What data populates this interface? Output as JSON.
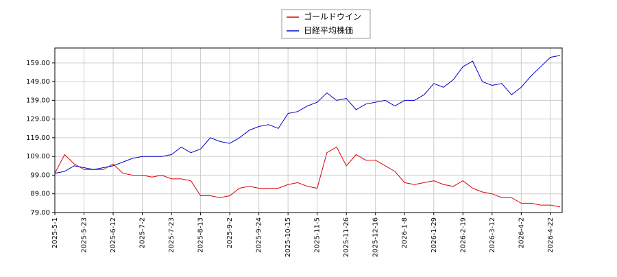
{
  "chart_data": {
    "type": "line",
    "categories": [
      "2025-5-1",
      null,
      null,
      "2025-5-23",
      null,
      null,
      "2025-6-12",
      null,
      null,
      "2025-7-2",
      null,
      null,
      "2025-7-23",
      null,
      null,
      "2025-8-13",
      null,
      null,
      "2025-9-2",
      null,
      null,
      "2025-9-24",
      null,
      null,
      "2025-10-15",
      null,
      null,
      "2025-11-5",
      null,
      null,
      "2025-11-26",
      null,
      null,
      "2025-12-16",
      null,
      null,
      "2026-1-8",
      null,
      null,
      "2026-1-29",
      null,
      null,
      "2026-2-19",
      null,
      null,
      "2026-3-12",
      null,
      null,
      "2026-4-2",
      null,
      null,
      "2026-4-22",
      null
    ],
    "series": [
      {
        "name": "ゴールドウイン",
        "color": "#dd0000",
        "values": [
          100,
          110,
          105,
          102,
          102,
          102,
          105,
          100,
          99,
          99,
          98,
          99,
          97,
          97,
          96,
          88,
          88,
          87,
          88,
          92,
          93,
          92,
          92,
          92,
          94,
          95,
          93,
          92,
          111,
          114,
          104,
          110,
          107,
          107,
          104,
          101,
          95,
          94,
          95,
          96,
          94,
          93,
          96,
          92,
          90,
          89,
          87,
          87,
          84,
          84,
          83,
          83,
          82
        ]
      },
      {
        "name": "日経平均株価",
        "color": "#0000cc",
        "values": [
          100,
          101,
          104,
          103,
          102,
          103,
          104,
          106,
          108,
          109,
          109,
          109,
          110,
          114,
          111,
          113,
          119,
          117,
          116,
          119,
          123,
          125,
          126,
          124,
          132,
          133,
          136,
          138,
          143,
          139,
          140,
          134,
          137,
          138,
          139,
          136,
          139,
          139,
          142,
          148,
          146,
          150,
          157,
          160,
          149,
          147,
          148,
          142,
          146,
          152,
          157,
          162,
          163
        ]
      }
    ],
    "ylim": [
      79,
      167
    ],
    "yticks": [
      {
        "value": 79,
        "label": "79.00"
      },
      {
        "value": 89,
        "label": "89.00"
      },
      {
        "value": 99,
        "label": "99.00"
      },
      {
        "value": 109,
        "label": "109.00"
      },
      {
        "value": 119,
        "label": "119.00"
      },
      {
        "value": 129,
        "label": "129.00"
      },
      {
        "value": 139,
        "label": "139.00"
      },
      {
        "value": 149,
        "label": "149.00"
      },
      {
        "value": 159,
        "label": "159.00"
      }
    ],
    "grid": true
  }
}
